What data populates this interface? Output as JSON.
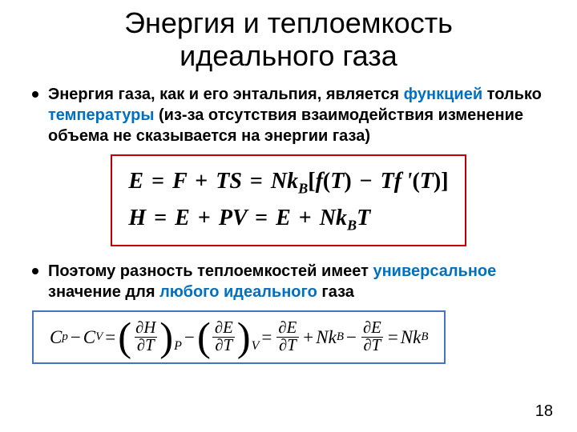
{
  "title_l1": "Энергия и теплоемкость",
  "title_l2": "идеального газа",
  "bullet1": {
    "t1": "Энергия газа, как и его энтальпия, является ",
    "hl1": "функцией",
    "t2": " только ",
    "hl2": "температуры",
    "t3": " (из-за отсутствия взаимодействия изменение объема не сказывается на энергии газа)"
  },
  "eq1": {
    "E": "E",
    "F": "F",
    "T": "T",
    "S": "S",
    "N": "N",
    "k": "k",
    "B": "B",
    "f": "f",
    "fp": "f '",
    "lb": "[",
    "rb": "]",
    "H": "H",
    "P": "P",
    "V": "V",
    "eq": "=",
    "plus": "+",
    "minus": "−",
    "lp": "(",
    "rp": ")"
  },
  "bullet2": {
    "t1": "Поэтому разность теплоемкостей имеет ",
    "hl1": "универсальное",
    "t2": " значение для ",
    "hl2": "любого идеального",
    "t3": " газа"
  },
  "eq2": {
    "C": "C",
    "p": "p",
    "V": "V",
    "H": "H",
    "E": "E",
    "T": "T",
    "P": "P",
    "N": "N",
    "k": "k",
    "B": "B",
    "d": "∂",
    "eq": "=",
    "plus": "+",
    "minus": "−"
  },
  "pagenum": "18",
  "colors": {
    "blue": "#0070c0",
    "box_red": "#c00000",
    "box_blue": "#4472c4"
  }
}
